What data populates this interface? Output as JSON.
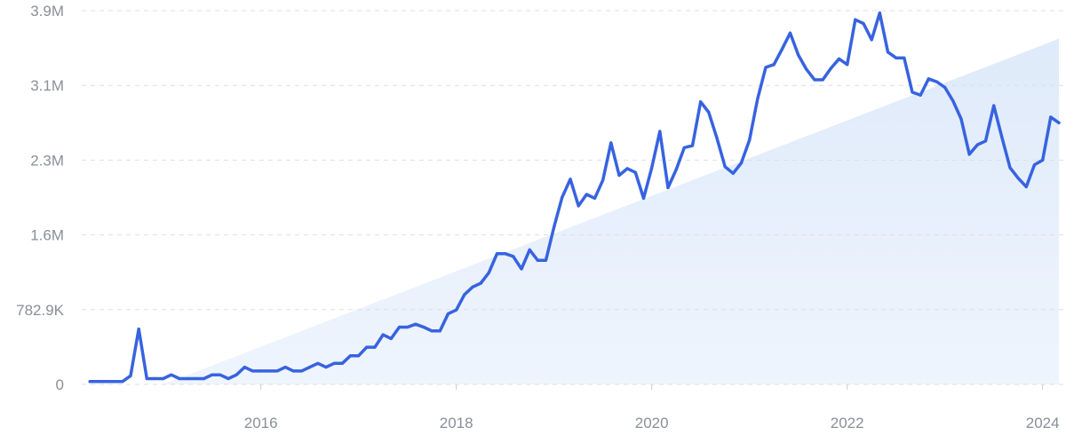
{
  "chart_data": {
    "type": "line",
    "title": "",
    "xlabel": "",
    "ylabel": "",
    "grid": true,
    "legend": "none",
    "colors": {
      "line": "#3763e0",
      "trend_fill": "#e3edfb",
      "grid": "#dcdfe4",
      "tick_text": "#8a8f98"
    },
    "x_ticks": [
      "2016",
      "2018",
      "2020",
      "2022",
      "2024"
    ],
    "y_ticks": [
      {
        "label": "0",
        "value": 0
      },
      {
        "label": "782.9K",
        "value": 782900
      },
      {
        "label": "1.6M",
        "value": 1565800
      },
      {
        "label": "2.3M",
        "value": 2348700
      },
      {
        "label": "3.1M",
        "value": 3131600
      },
      {
        "label": "3.9M",
        "value": 3914500
      }
    ],
    "ylim": [
      0,
      3914500
    ],
    "xlim": [
      "2014-03",
      "2024-03"
    ],
    "trend": {
      "start_x": "2015-01",
      "end_x": "2024-03",
      "start_value": 0,
      "end_value": 3620000
    },
    "series": [
      {
        "x": [
          "2014-04",
          "2014-05",
          "2014-06",
          "2014-07",
          "2014-08",
          "2014-09",
          "2014-10",
          "2014-11",
          "2014-12",
          "2015-01",
          "2015-02",
          "2015-03",
          "2015-04",
          "2015-05",
          "2015-06",
          "2015-07",
          "2015-08",
          "2015-09",
          "2015-10",
          "2015-11",
          "2015-12",
          "2016-01",
          "2016-02",
          "2016-03",
          "2016-04",
          "2016-05",
          "2016-06",
          "2016-07",
          "2016-08",
          "2016-09",
          "2016-10",
          "2016-11",
          "2016-12",
          "2017-01",
          "2017-02",
          "2017-03",
          "2017-04",
          "2017-05",
          "2017-06",
          "2017-07",
          "2017-08",
          "2017-09",
          "2017-10",
          "2017-11",
          "2017-12",
          "2018-01",
          "2018-02",
          "2018-03",
          "2018-04",
          "2018-05",
          "2018-06",
          "2018-07",
          "2018-08",
          "2018-09",
          "2018-10",
          "2018-11",
          "2018-12",
          "2019-01",
          "2019-02",
          "2019-03",
          "2019-04",
          "2019-05",
          "2019-06",
          "2019-07",
          "2019-08",
          "2019-09",
          "2019-10",
          "2019-11",
          "2019-12",
          "2020-01",
          "2020-02",
          "2020-03",
          "2020-04",
          "2020-05",
          "2020-06",
          "2020-07",
          "2020-08",
          "2020-09",
          "2020-10",
          "2020-11",
          "2020-12",
          "2021-01",
          "2021-02",
          "2021-03",
          "2021-04",
          "2021-05",
          "2021-06",
          "2021-07",
          "2021-08",
          "2021-09",
          "2021-10",
          "2021-11",
          "2021-12",
          "2022-01",
          "2022-02",
          "2022-03",
          "2022-04",
          "2022-05",
          "2022-06",
          "2022-07",
          "2022-08",
          "2022-09",
          "2022-10",
          "2022-11",
          "2022-12",
          "2023-01",
          "2023-02",
          "2023-03",
          "2023-04",
          "2023-05",
          "2023-06",
          "2023-07",
          "2023-08",
          "2023-09",
          "2023-10",
          "2023-11",
          "2023-12",
          "2024-01",
          "2024-02",
          "2024-03"
        ],
        "values": [
          30000,
          30000,
          30000,
          30000,
          30000,
          90000,
          580000,
          60000,
          60000,
          60000,
          100000,
          60000,
          60000,
          60000,
          60000,
          100000,
          100000,
          60000,
          100000,
          180000,
          140000,
          140000,
          140000,
          140000,
          180000,
          140000,
          140000,
          180000,
          220000,
          180000,
          220000,
          220000,
          300000,
          300000,
          390000,
          390000,
          520000,
          480000,
          600000,
          600000,
          630000,
          600000,
          560000,
          560000,
          740000,
          780000,
          940000,
          1020000,
          1060000,
          1170000,
          1370000,
          1370000,
          1340000,
          1210000,
          1410000,
          1300000,
          1300000,
          1650000,
          1960000,
          2150000,
          1870000,
          1990000,
          1950000,
          2140000,
          2530000,
          2190000,
          2260000,
          2220000,
          1950000,
          2270000,
          2650000,
          2060000,
          2250000,
          2480000,
          2500000,
          2960000,
          2850000,
          2580000,
          2280000,
          2210000,
          2320000,
          2560000,
          2990000,
          3320000,
          3350000,
          3510000,
          3680000,
          3450000,
          3300000,
          3190000,
          3190000,
          3310000,
          3410000,
          3350000,
          3820000,
          3780000,
          3610000,
          3890000,
          3480000,
          3420000,
          3420000,
          3060000,
          3030000,
          3200000,
          3170000,
          3110000,
          2970000,
          2780000,
          2410000,
          2510000,
          2550000,
          2920000,
          2590000,
          2270000,
          2160000,
          2070000,
          2300000,
          2350000,
          2800000,
          2740000
        ]
      }
    ]
  }
}
